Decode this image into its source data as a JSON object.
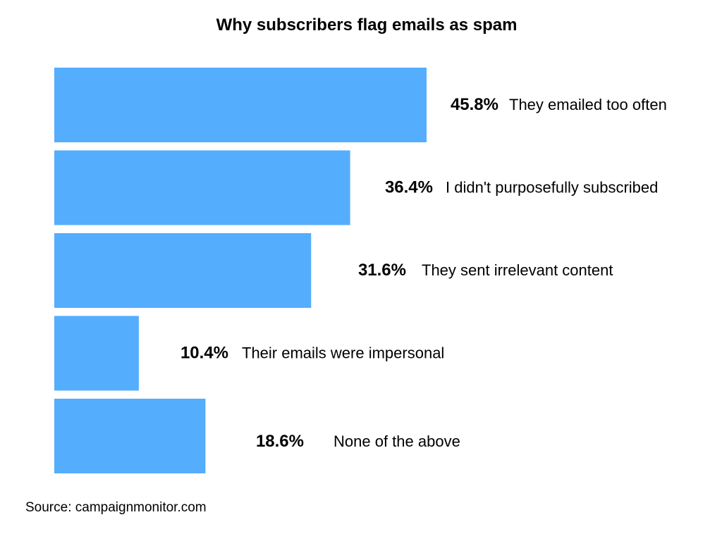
{
  "chart_data": {
    "type": "bar",
    "orientation": "horizontal",
    "title": "Why subscribers flag emails as spam",
    "categories": [
      "They emailed too often",
      "I didn't purposefully subscribed",
      "They sent irrelevant content",
      "Their emails were impersonal",
      "None of the above"
    ],
    "values": [
      45.8,
      36.4,
      31.6,
      10.4,
      18.6
    ],
    "value_labels": [
      "45.8%",
      "36.4%",
      "31.6%",
      "10.4%",
      "18.6%"
    ],
    "xlim": [
      0,
      100
    ],
    "grid": false,
    "legend": "none",
    "colors": {
      "bar": "#55adfd",
      "text": "#000000"
    }
  },
  "source": "Source: campaignmonitor.com"
}
